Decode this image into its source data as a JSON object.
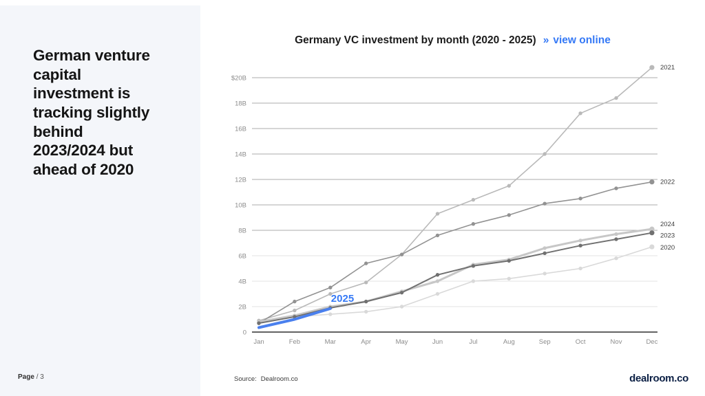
{
  "sidebar": {
    "title": "German venture\ncapital\ninvestment is\ntracking slightly\nbehind\n2023/2024 but\nahead of 2020"
  },
  "header": {
    "title": "Germany VC investment by month (2020 - 2025)",
    "link_arrow": "»",
    "link_label": "view online"
  },
  "footer": {
    "page_label": "Page",
    "page_value": "/ 3",
    "source_label": "Source:",
    "source_value": "Dealroom.co",
    "logo_text": "dealroom.co"
  },
  "colors": {
    "accent_blue": "#3579f6",
    "line_blue": "#4a80ee",
    "logo_navy": "#0b1f44",
    "sidebar_bg": "#f4f6fa"
  },
  "chart_data": {
    "type": "line",
    "title": "Germany VC investment by month (2020 - 2025)",
    "x": [
      "Jan",
      "Feb",
      "Mar",
      "Apr",
      "May",
      "Jun",
      "Jul",
      "Aug",
      "Sep",
      "Oct",
      "Nov",
      "Dec"
    ],
    "y_ticks": [
      "$20B",
      "18B",
      "16B",
      "14B",
      "12B",
      "10B",
      "8B",
      "6B",
      "4B",
      "2B",
      "0"
    ],
    "ylim": [
      0,
      20
    ],
    "ylabel_unit": "B",
    "grid": "horizontal",
    "legend_position": "right-end-labels",
    "series": [
      {
        "name": "2020",
        "color": "#d9d9d9",
        "width": 1.6,
        "dots": true,
        "end_label": true,
        "label_dy": 1,
        "values": [
          0.9,
          1.2,
          1.4,
          1.6,
          2.0,
          3.0,
          4.0,
          4.2,
          4.6,
          5.0,
          5.8,
          6.7
        ]
      },
      {
        "name": "2021",
        "color": "#b9b9b9",
        "width": 1.6,
        "dots": true,
        "end_label": true,
        "label_dy": 0,
        "values": [
          0.9,
          1.7,
          3.0,
          3.9,
          6.1,
          9.3,
          10.4,
          11.5,
          14.0,
          17.2,
          18.4,
          20.8
        ]
      },
      {
        "name": "2022",
        "color": "#929292",
        "width": 1.6,
        "dots": true,
        "end_label": true,
        "label_dy": 0,
        "values": [
          0.7,
          2.4,
          3.5,
          5.4,
          6.1,
          7.6,
          8.5,
          9.2,
          10.1,
          10.5,
          11.3,
          11.8
        ]
      },
      {
        "name": "2024",
        "color": "#c7c7c7",
        "width": 3,
        "dots": true,
        "end_label": true,
        "label_dy": -7,
        "values": [
          0.8,
          1.3,
          2.0,
          2.4,
          3.2,
          4.0,
          5.3,
          5.7,
          6.6,
          7.2,
          7.7,
          8.1
        ]
      },
      {
        "name": "2023",
        "color": "#707070",
        "width": 2,
        "dots": true,
        "end_label": true,
        "label_dy": 4,
        "values": [
          0.7,
          1.2,
          1.9,
          2.4,
          3.1,
          4.5,
          5.2,
          5.6,
          6.2,
          6.8,
          7.3,
          7.8
        ]
      },
      {
        "name": "2025",
        "color": "#4a80ee",
        "width": 4,
        "dots": false,
        "end_label": false,
        "label_dy": 0,
        "values": [
          0.35,
          1.0,
          1.85
        ]
      }
    ],
    "annotation": {
      "text": "2025",
      "month_index": 2,
      "value": 2.65,
      "color": "#3579f6"
    }
  }
}
